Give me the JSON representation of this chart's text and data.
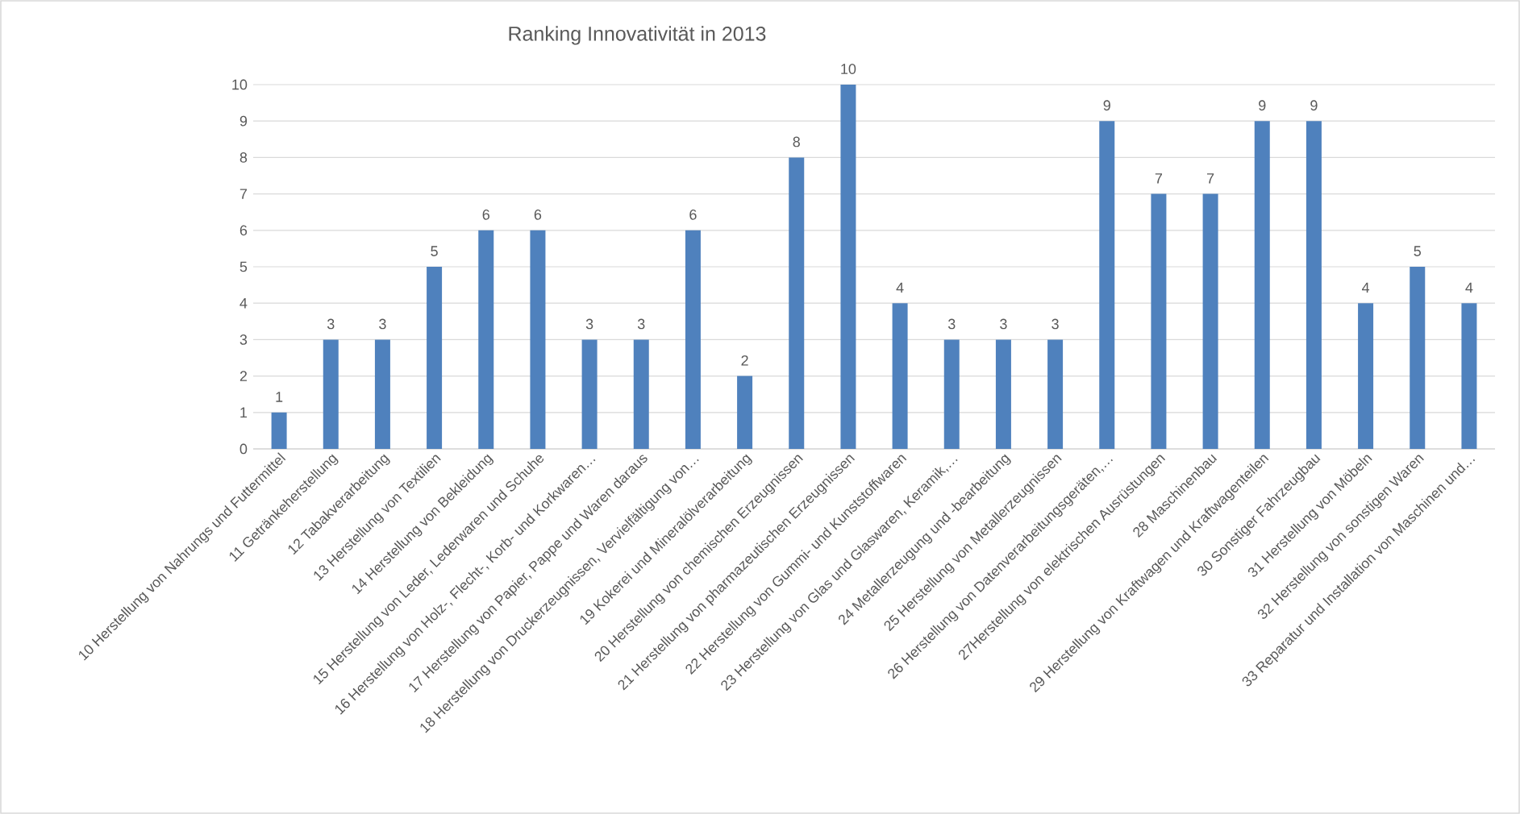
{
  "chart_data": {
    "type": "bar",
    "title": "Ranking Innovativität in 2013",
    "categories": [
      "10 Herstellung von Nahrungs und Futtermittel",
      "11 Getränkeherstellung",
      "12 Tabakverarbeitung",
      "13 Herstellung von Textilien",
      "14 Herstellung von Bekleidung",
      "15 Herstellung von Leder, Lederwaren und Schuhe",
      "16 Herstellung von Holz-, Flecht-, Korb- und Korkwaren…",
      "17 Herstellung von Papier, Pappe und Waren daraus",
      "18 Herstellung von Druckerzeugnissen, Vervielfältigung von…",
      "19 Kokerei und Mineralölverarbeitung",
      "20 Herstellung von chemischen Erzeugnissen",
      "21 Herstellung von pharmazeutischen Erzeugnissen",
      "22 Herstellung von Gummi- und Kunststoffwaren",
      "23 Herstellung von Glas und Glaswaren, Keramik,…",
      "24 Metallerzeugung und  -bearbeitung",
      "25 Herstellung  von Metallerzeugnissen",
      "26 Herstellung von Datenverarbeitungsgeräten,…",
      "27Herstellung von elektrischen Ausrüstungen",
      "28 Maschinenbau",
      "29 Herstellung von Kraftwagen und Kraftwagenteilen",
      "30 Sonstiger Fahrzeugbau",
      "31 Herstellung von Möbeln",
      "32 Herstellung von sonstigen Waren",
      "33 Reparatur und Installation von Maschinen und…"
    ],
    "values": [
      1,
      3,
      3,
      5,
      6,
      6,
      3,
      3,
      6,
      2,
      8,
      10,
      4,
      3,
      3,
      3,
      9,
      7,
      7,
      9,
      9,
      4,
      5,
      4
    ],
    "color": "#4f81bd",
    "ylim": [
      0,
      10
    ],
    "yticks": [
      0,
      1,
      2,
      3,
      4,
      5,
      6,
      7,
      8,
      9,
      10
    ],
    "grid": "y",
    "data_labels": true
  }
}
